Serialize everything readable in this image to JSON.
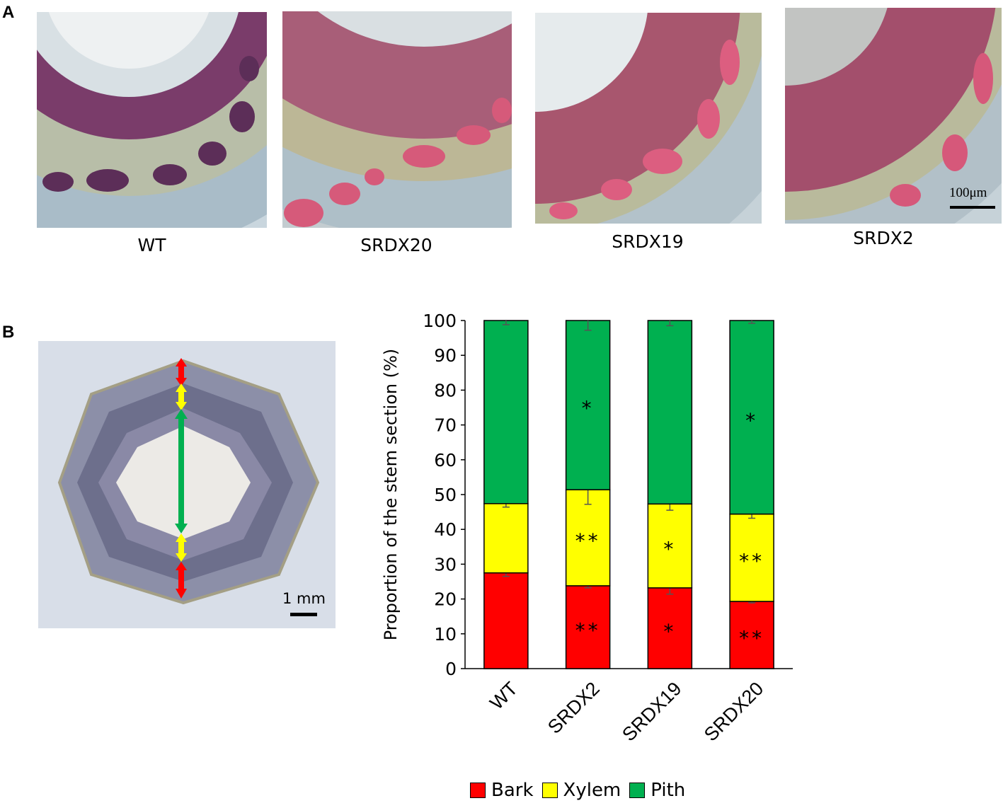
{
  "panels": {
    "a": {
      "letter": "A"
    },
    "b": {
      "letter": "B"
    }
  },
  "micrographs": [
    {
      "label": "WT"
    },
    {
      "label": "SRDX20"
    },
    {
      "label": "SRDX19"
    },
    {
      "label": "SRDX2"
    }
  ],
  "micro_scale": "100μm",
  "stem_scale": "1 mm",
  "colors": {
    "bark": "#ff0000",
    "xylem": "#ffff00",
    "pith": "#00b050",
    "stain_red": "#b04a6a",
    "tissue_blue": "#9fb3c0"
  },
  "legend": [
    {
      "label": "Bark",
      "color": "#ff0000"
    },
    {
      "label": "Xylem",
      "color": "#ffff00"
    },
    {
      "label": "Pith",
      "color": "#00b050"
    }
  ],
  "chart_data": {
    "type": "bar",
    "stacked": true,
    "categories": [
      "WT",
      "SRDX2",
      "SRDX19",
      "SRDX20"
    ],
    "ylabel": "Proportion  of the stem section (%)",
    "ylim": [
      0,
      100
    ],
    "yticks": [
      0,
      10,
      20,
      30,
      40,
      50,
      60,
      70,
      80,
      90,
      100
    ],
    "series": [
      {
        "name": "Bark",
        "color": "#ff0000",
        "values": [
          27.5,
          23.8,
          23.2,
          19.3
        ],
        "errors": [
          1.0,
          0.6,
          1.8,
          0.4
        ],
        "annotations": [
          "",
          "**",
          "*",
          "**"
        ]
      },
      {
        "name": "Xylem",
        "color": "#ffff00",
        "values": [
          19.9,
          27.6,
          24.1,
          25.1
        ],
        "errors": [
          1.0,
          4.2,
          1.8,
          1.2
        ],
        "annotations": [
          "",
          "**",
          "*",
          "**"
        ]
      },
      {
        "name": "Pith",
        "color": "#00b050",
        "values": [
          52.6,
          48.6,
          52.7,
          55.6
        ],
        "errors": [
          1.2,
          2.8,
          1.5,
          0.8
        ],
        "annotations": [
          "",
          "*",
          "",
          "*"
        ]
      }
    ]
  }
}
